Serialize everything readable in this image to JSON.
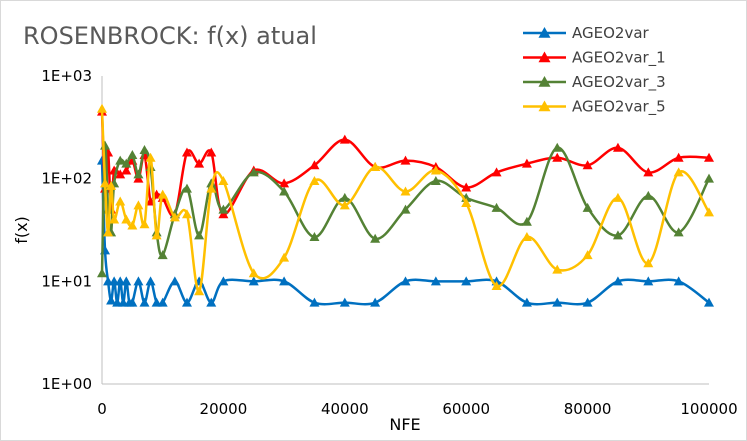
{
  "chart_data": {
    "type": "line",
    "title": "ROSENBROCK: f(x) atual",
    "xlabel": "NFE",
    "ylabel": "f(x)",
    "xlim": [
      0,
      100000
    ],
    "ylim": [
      1,
      1000
    ],
    "yscale": "log",
    "grid": false,
    "legend_position": "top-right",
    "x_ticks": [
      0,
      20000,
      40000,
      60000,
      80000,
      100000
    ],
    "x_tick_labels": [
      "0",
      "20000",
      "40000",
      "60000",
      "80000",
      "100000"
    ],
    "y_ticks": [
      1,
      10,
      100,
      1000
    ],
    "y_tick_labels": [
      "1E+00",
      "1E+01",
      "1E+02",
      "1E+03"
    ],
    "series": [
      {
        "name": "AGEO2var",
        "color": "#0070c0",
        "x": [
          0,
          500,
          1000,
          1500,
          2000,
          2500,
          3000,
          3500,
          4000,
          4500,
          5000,
          6000,
          7000,
          8000,
          9000,
          10000,
          12000,
          14000,
          16000,
          18000,
          20000,
          25000,
          30000,
          35000,
          40000,
          45000,
          50000,
          55000,
          60000,
          65000,
          70000,
          75000,
          80000,
          85000,
          90000,
          95000,
          100000
        ],
        "values": [
          150,
          20,
          10,
          6.5,
          10,
          6.2,
          10,
          6.2,
          10,
          6.2,
          6.2,
          10,
          6.2,
          10,
          6.2,
          6.2,
          10,
          6.2,
          10,
          6.2,
          10,
          10,
          10,
          6.2,
          6.2,
          6.2,
          10,
          10,
          10,
          10,
          6.2,
          6.2,
          6.2,
          10,
          10,
          10,
          6.2
        ]
      },
      {
        "name": "AGEO2var_1",
        "color": "#ff0000",
        "x": [
          0,
          500,
          1000,
          1500,
          2000,
          3000,
          4000,
          5000,
          6000,
          7000,
          8000,
          9000,
          10000,
          12000,
          14000,
          16000,
          18000,
          20000,
          25000,
          30000,
          35000,
          40000,
          45000,
          50000,
          55000,
          60000,
          65000,
          70000,
          75000,
          80000,
          85000,
          90000,
          95000,
          100000
        ],
        "values": [
          450,
          80,
          180,
          50,
          120,
          110,
          120,
          150,
          100,
          170,
          60,
          70,
          65,
          45,
          180,
          140,
          180,
          45,
          120,
          90,
          135,
          240,
          130,
          150,
          130,
          82,
          115,
          140,
          160,
          135,
          200,
          115,
          160,
          160
        ]
      },
      {
        "name": "AGEO2var_3",
        "color": "#548235",
        "x": [
          0,
          500,
          1000,
          1500,
          2000,
          3000,
          4000,
          5000,
          6000,
          7000,
          8000,
          9000,
          10000,
          12000,
          14000,
          16000,
          18000,
          20000,
          25000,
          30000,
          35000,
          40000,
          45000,
          50000,
          55000,
          60000,
          65000,
          70000,
          75000,
          80000,
          85000,
          90000,
          95000,
          100000
        ],
        "values": [
          12,
          210,
          50,
          30,
          90,
          150,
          140,
          170,
          110,
          190,
          130,
          30,
          18,
          45,
          80,
          28,
          90,
          50,
          115,
          75,
          27,
          65,
          26,
          50,
          95,
          65,
          52,
          38,
          200,
          52,
          28,
          68,
          30,
          100
        ]
      },
      {
        "name": "AGEO2var_5",
        "color": "#ffc000",
        "x": [
          0,
          500,
          1000,
          1500,
          2000,
          3000,
          4000,
          5000,
          6000,
          7000,
          8000,
          9000,
          10000,
          12000,
          14000,
          16000,
          18000,
          20000,
          25000,
          30000,
          35000,
          40000,
          45000,
          50000,
          55000,
          60000,
          65000,
          70000,
          75000,
          80000,
          85000,
          90000,
          95000,
          100000
        ],
        "values": [
          480,
          90,
          30,
          85,
          40,
          60,
          40,
          35,
          55,
          36,
          160,
          28,
          70,
          42,
          45,
          8,
          80,
          95,
          12,
          17,
          95,
          55,
          130,
          75,
          120,
          58,
          9,
          27,
          13,
          18,
          65,
          15,
          115,
          47
        ]
      }
    ]
  }
}
